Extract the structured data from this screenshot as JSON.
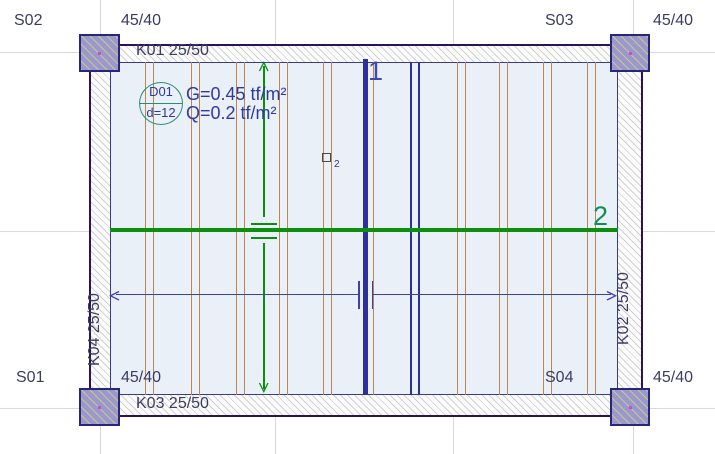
{
  "app": {
    "view": "floor-plan"
  },
  "columns": [
    {
      "name": "S02",
      "size": "45/40",
      "position": "top-left"
    },
    {
      "name": "S03",
      "size": "45/40",
      "position": "top-right"
    },
    {
      "name": "S01",
      "size": "45/40",
      "position": "bottom-left"
    },
    {
      "name": "S04",
      "size": "45/40",
      "position": "bottom-right"
    }
  ],
  "beams": [
    {
      "name": "K01 25/50",
      "position": "top"
    },
    {
      "name": "K02 25/50",
      "position": "right"
    },
    {
      "name": "K03 25/50",
      "position": "bottom"
    },
    {
      "name": "K04 25/50",
      "position": "left"
    }
  ],
  "slab": {
    "name": "D01",
    "thickness": "d=12",
    "dead_load": "G=0.45 tf/m²",
    "live_load": "Q=0.2 tf/m²"
  },
  "sections": [
    {
      "label": "1",
      "orientation": "vertical"
    },
    {
      "label": "2",
      "orientation": "horizontal"
    }
  ],
  "marker": {
    "label": "2"
  },
  "colors": {
    "grid": "#d7d7e6",
    "rib": "#c0854f",
    "section_navy": "#2c2f9c",
    "section_green": "#0c8f0c",
    "section2_label": "#0f8d5a",
    "section1_label": "#3f49b4",
    "dimension_blue": "#4040aa",
    "slab_fill": "#e9f0f8",
    "column_fill": "#9b97d1",
    "text": "#3b3b63"
  }
}
